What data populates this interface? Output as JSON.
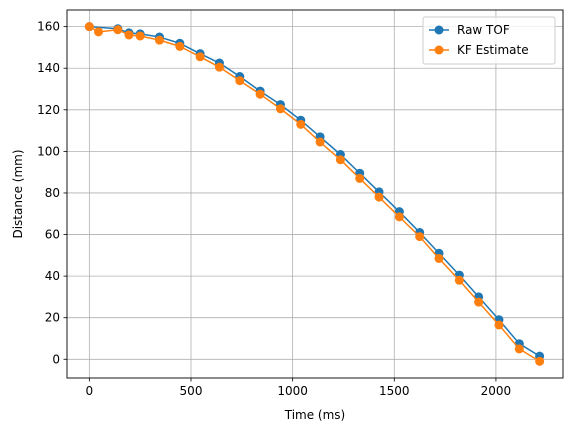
{
  "chart_data": {
    "type": "line",
    "xlabel": "Time (ms)",
    "ylabel": "Distance (mm)",
    "xlim": [
      -110,
      2330
    ],
    "ylim": [
      -9,
      168
    ],
    "xticks": [
      0,
      500,
      1000,
      1500,
      2000
    ],
    "yticks": [
      0,
      20,
      40,
      60,
      80,
      100,
      120,
      140,
      160
    ],
    "grid": true,
    "legend_position": "top-right",
    "series": [
      {
        "name": "Raw TOF",
        "color": "#1f77b4",
        "marker": "circle",
        "x": [
          0,
          140,
          195,
          250,
          345,
          445,
          545,
          640,
          740,
          840,
          940,
          1040,
          1135,
          1235,
          1330,
          1425,
          1525,
          1625,
          1720,
          1820,
          1915,
          2015,
          2115,
          2215
        ],
        "y": [
          160,
          159,
          157,
          156.5,
          155,
          152,
          147,
          142.5,
          136,
          129,
          122.5,
          115,
          107,
          98.5,
          89.5,
          80.5,
          71,
          61,
          51,
          40.5,
          30,
          19,
          7.5,
          1.5
        ]
      },
      {
        "name": "KF Estimate",
        "color": "#ff7f0e",
        "marker": "circle",
        "x": [
          0,
          45,
          140,
          195,
          250,
          345,
          445,
          545,
          640,
          740,
          840,
          940,
          1040,
          1135,
          1235,
          1330,
          1425,
          1525,
          1625,
          1720,
          1820,
          1915,
          2015,
          2115,
          2215
        ],
        "y": [
          160,
          157.5,
          158.5,
          156,
          155.5,
          153.5,
          150.5,
          145.5,
          140.5,
          134,
          127.5,
          120.5,
          113,
          104.5,
          96,
          87,
          78,
          68.5,
          59,
          48.5,
          38,
          27.5,
          16.5,
          5,
          -1
        ]
      }
    ]
  }
}
